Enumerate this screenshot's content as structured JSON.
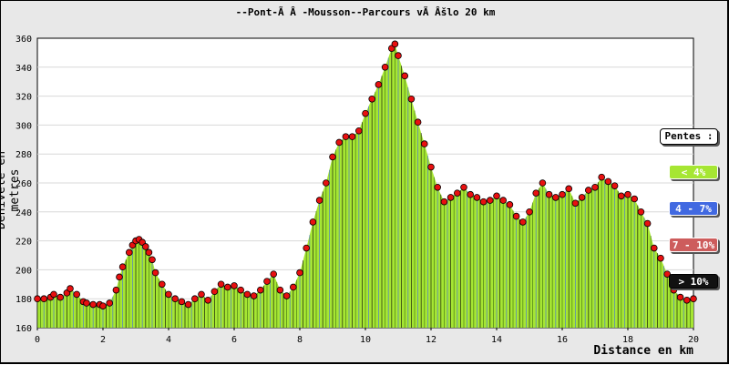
{
  "chart_data": {
    "type": "area",
    "title": "--Pont-Ã Â -Mousson--Parcours vÃ Âšlo 20 km",
    "xlabel": "Distance en km",
    "ylabel": "Dénivelé en metres",
    "xlim": [
      0,
      20
    ],
    "ylim": [
      160,
      360
    ],
    "x_ticks": [
      0,
      2,
      4,
      6,
      8,
      10,
      12,
      14,
      16,
      18,
      20
    ],
    "y_ticks": [
      160,
      180,
      200,
      220,
      240,
      260,
      280,
      300,
      320,
      340,
      360
    ],
    "grid": "horizontal",
    "legend": {
      "position": "right",
      "title": "Pentes :",
      "entries": [
        {
          "label": "< 4%",
          "color": "#a6e633"
        },
        {
          "label": "4 - 7%",
          "color": "#4169e1"
        },
        {
          "label": "7 - 10%",
          "color": "#cd5c5c"
        },
        {
          "label": "> 10%",
          "color": "#111111"
        }
      ]
    },
    "colors": {
      "fill": "#a6e633",
      "marker": "#e81010",
      "stem": "#000000"
    },
    "series": [
      {
        "x": [
          0.0,
          0.2,
          0.4,
          0.5,
          0.7,
          0.9,
          1.0,
          1.2,
          1.4,
          1.5,
          1.7,
          1.9,
          2.0,
          2.2,
          2.4,
          2.5,
          2.6,
          2.8,
          2.9,
          3.0,
          3.1,
          3.2,
          3.3,
          3.4,
          3.5,
          3.6,
          3.8,
          4.0,
          4.2,
          4.4,
          4.6,
          4.8,
          5.0,
          5.2,
          5.4,
          5.6,
          5.8,
          6.0,
          6.2,
          6.4,
          6.6,
          6.8,
          7.0,
          7.2,
          7.4,
          7.6,
          7.8,
          8.0,
          8.2,
          8.4,
          8.6,
          8.8,
          9.0,
          9.2,
          9.4,
          9.6,
          9.8,
          10.0,
          10.2,
          10.4,
          10.6,
          10.8,
          10.9,
          11.0,
          11.2,
          11.4,
          11.6,
          11.8,
          12.0,
          12.2,
          12.4,
          12.6,
          12.8,
          13.0,
          13.2,
          13.4,
          13.6,
          13.8,
          14.0,
          14.2,
          14.4,
          14.6,
          14.8,
          15.0,
          15.2,
          15.4,
          15.6,
          15.8,
          16.0,
          16.2,
          16.4,
          16.6,
          16.8,
          17.0,
          17.2,
          17.4,
          17.6,
          17.8,
          18.0,
          18.2,
          18.4,
          18.6,
          18.8,
          19.0,
          19.2,
          19.4,
          19.6,
          19.8,
          20.0
        ],
        "y": [
          180,
          180,
          181,
          183,
          181,
          184,
          187,
          183,
          178,
          177,
          176,
          176,
          175,
          177,
          186,
          195,
          202,
          212,
          217,
          220,
          221,
          219,
          216,
          212,
          207,
          198,
          190,
          183,
          180,
          178,
          176,
          180,
          183,
          179,
          185,
          190,
          188,
          189,
          186,
          183,
          182,
          186,
          192,
          197,
          186,
          182,
          188,
          198,
          215,
          233,
          248,
          260,
          278,
          288,
          292,
          292,
          296,
          308,
          318,
          328,
          340,
          353,
          356,
          348,
          334,
          318,
          302,
          287,
          271,
          257,
          247,
          250,
          253,
          257,
          252,
          250,
          247,
          248,
          251,
          248,
          245,
          237,
          233,
          240,
          253,
          260,
          252,
          250,
          252,
          256,
          246,
          250,
          255,
          257,
          264,
          261,
          258,
          251,
          252,
          249,
          240,
          232,
          215,
          208,
          197,
          186,
          181,
          179,
          180
        ]
      }
    ]
  }
}
